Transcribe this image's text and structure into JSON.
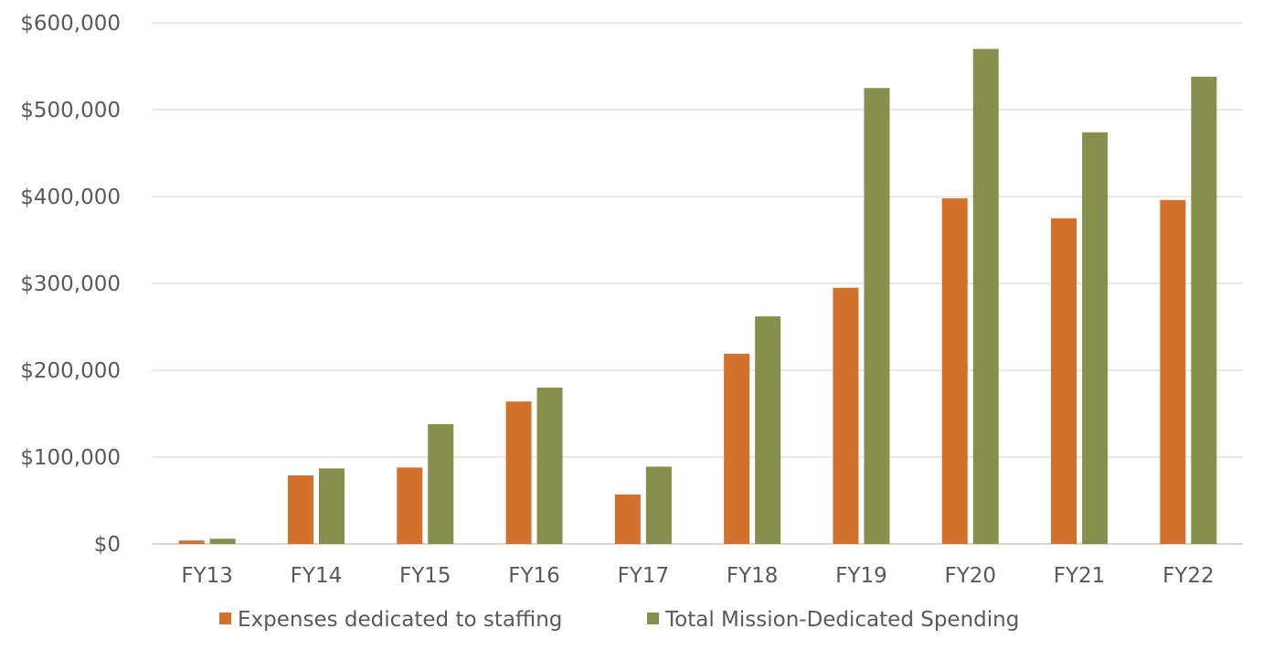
{
  "chart_data": {
    "type": "bar",
    "title": "",
    "xlabel": "",
    "ylabel": "",
    "categories": [
      "FY13",
      "FY14",
      "FY15",
      "FY16",
      "FY17",
      "FY18",
      "FY19",
      "FY20",
      "FY21",
      "FY22"
    ],
    "series": [
      {
        "name": "Expenses dedicated to staffing",
        "color": "#D2702C",
        "values": [
          4000,
          79000,
          88000,
          164000,
          57000,
          219000,
          295000,
          398000,
          375000,
          396000
        ]
      },
      {
        "name": "Total Mission-Dedicated Spending",
        "color": "#86904C",
        "values": [
          6000,
          87000,
          138000,
          180000,
          89000,
          262000,
          525000,
          570000,
          474000,
          538000
        ]
      }
    ],
    "ylim": [
      0,
      600000
    ],
    "yticks": [
      0,
      100000,
      200000,
      300000,
      400000,
      500000,
      600000
    ],
    "ytick_labels": [
      "$0",
      "$100,000",
      "$200,000",
      "$300,000",
      "$400,000",
      "$500,000",
      "$600,000"
    ],
    "grid": true,
    "legend_position": "bottom"
  }
}
